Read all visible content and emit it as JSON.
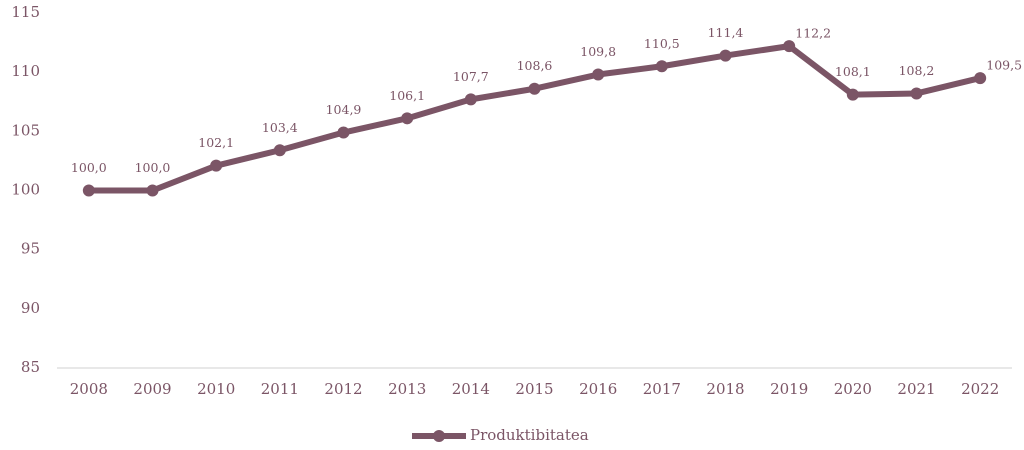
{
  "chart_data": {
    "type": "line",
    "categories": [
      "2008",
      "2009",
      "2010",
      "2011",
      "2012",
      "2013",
      "2014",
      "2015",
      "2016",
      "2017",
      "2018",
      "2019",
      "2020",
      "2021",
      "2022"
    ],
    "series": [
      {
        "name": "Produktibitatea",
        "color": "#7b5566",
        "values": [
          100.0,
          100.0,
          102.1,
          103.4,
          104.9,
          106.1,
          107.7,
          108.6,
          109.8,
          110.5,
          111.4,
          112.2,
          108.1,
          108.2,
          109.5
        ],
        "value_labels": [
          "100,0",
          "100,0",
          "102,1",
          "103,4",
          "104,9",
          "106,1",
          "107,7",
          "108,6",
          "109,8",
          "110,5",
          "111,4",
          "112,2",
          "108,1",
          "108,2",
          "109,5"
        ]
      }
    ],
    "ylim": [
      85,
      115
    ],
    "yticks": [
      85,
      90,
      95,
      100,
      105,
      110,
      115
    ],
    "grid": false,
    "legend": "bottom"
  }
}
